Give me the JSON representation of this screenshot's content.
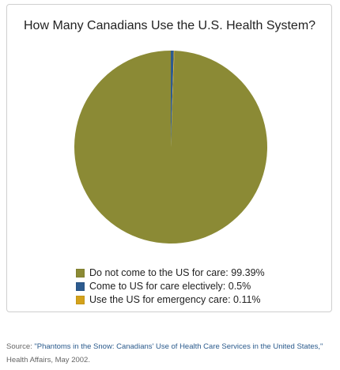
{
  "chart_data": {
    "type": "pie",
    "title": "How Many Canadians Use the U.S. Health System?",
    "slices": [
      {
        "label": "Do not come to the US for care",
        "value": 99.39,
        "display": "Do not come to the US for care: 99.39%",
        "color": "#8b8a35"
      },
      {
        "label": "Come to US for care electively",
        "value": 0.5,
        "display": "Come to US for care electively: 0.5%",
        "color": "#2d5b8f"
      },
      {
        "label": "Use the US for emergency care",
        "value": 0.11,
        "display": "Use the US for emergency care: 0.11%",
        "color": "#d4a21b"
      }
    ],
    "legend_position": "bottom"
  },
  "source": {
    "prefix": "Source: ",
    "link_text": "\"Phantoms in the Snow: Canadians' Use of Health Care Services in the United States,\"",
    "suffix": " Health Affairs, May 2002."
  }
}
